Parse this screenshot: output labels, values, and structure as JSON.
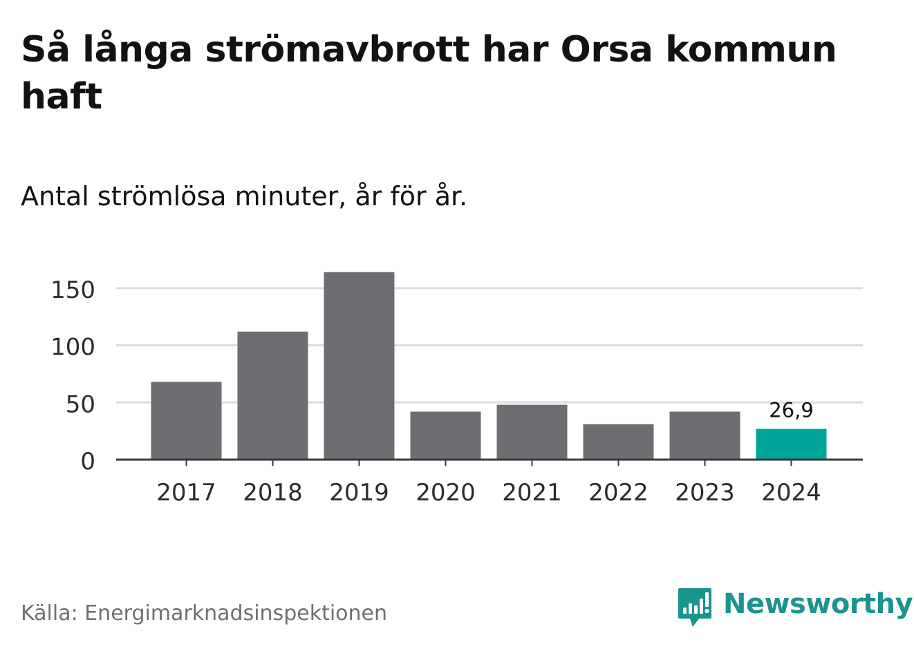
{
  "title": "Så långa strömavbrott har Orsa kommun haft",
  "subtitle": "Antal strömlösa minuter, år för år.",
  "source": "Källa: Energimarknadsinspektionen",
  "brand": {
    "name": "Newsworthy",
    "icon": "newsworthy-logo-icon",
    "color": "#1a948d"
  },
  "colors": {
    "bar": "#6e6d72",
    "highlight": "#00a398",
    "grid": "#dcdcdc",
    "axis": "#3a3a3a",
    "text": "#121212",
    "tick_text": "#2b2b2b"
  },
  "chart_data": {
    "type": "bar",
    "title": "Så långa strömavbrott har Orsa kommun haft",
    "subtitle": "Antal strömlösa minuter, år för år.",
    "xlabel": "",
    "ylabel": "",
    "categories": [
      "2017",
      "2018",
      "2019",
      "2020",
      "2021",
      "2022",
      "2023",
      "2024"
    ],
    "values": [
      68,
      112,
      164,
      42,
      48,
      31,
      42,
      26.9
    ],
    "highlight_index": 7,
    "annotations": [
      {
        "category": "2024",
        "text": "26,9"
      }
    ],
    "yticks": [
      0,
      50,
      100,
      150
    ],
    "ytick_labels": [
      "0",
      "50",
      "100",
      "150"
    ],
    "ylim": [
      0,
      150
    ],
    "grid": true,
    "legend": "none"
  }
}
